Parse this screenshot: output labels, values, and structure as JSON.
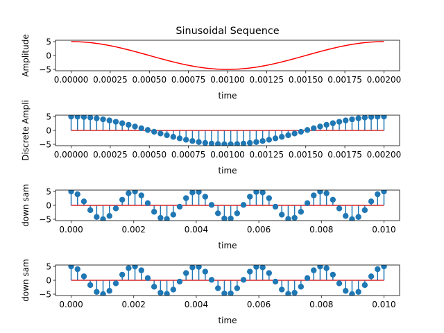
{
  "chart_data": [
    {
      "type": "line",
      "title": "Sinusoidal Sequence",
      "xlabel": "time",
      "ylabel": "Amplitude",
      "xlim": [
        -0.0001,
        0.0021
      ],
      "ylim": [
        -5.5,
        5.5
      ],
      "xticks": [
        0.0,
        0.00025,
        0.0005,
        0.00075,
        0.001,
        0.00125,
        0.0015,
        0.00175,
        0.002
      ],
      "xtick_labels": [
        "0.00000",
        "0.00025",
        "0.00050",
        "0.00075",
        "0.00100",
        "0.00125",
        "0.00150",
        "0.00175",
        "0.00200"
      ],
      "yticks": [
        -5,
        0,
        5
      ],
      "ytick_labels": [
        "−5",
        "0",
        "5"
      ],
      "line_color": "#ff0000",
      "function": {
        "amplitude": 5,
        "frequency_hz": 500,
        "x_start": 0,
        "x_end": 0.002,
        "samples": 200
      }
    },
    {
      "type": "stem",
      "title": "",
      "xlabel": "time",
      "ylabel": "Discrete Ampli",
      "xlim": [
        -0.0001,
        0.0021
      ],
      "ylim": [
        -5.5,
        5.5
      ],
      "xticks": [
        0.0,
        0.00025,
        0.0005,
        0.00075,
        0.001,
        0.00125,
        0.0015,
        0.00175,
        0.002
      ],
      "xtick_labels": [
        "0.00000",
        "0.00025",
        "0.00050",
        "0.00075",
        "0.00100",
        "0.00125",
        "0.00150",
        "0.00175",
        "0.00200"
      ],
      "yticks": [
        -5,
        0,
        5
      ],
      "ytick_labels": [
        "−5",
        "0",
        "5"
      ],
      "marker_color": "#1f77b4",
      "baseline_color": "#d62728",
      "function": {
        "amplitude": 5,
        "frequency_hz": 500,
        "x_start": 0,
        "x_end": 0.002,
        "samples": 50
      }
    },
    {
      "type": "stem",
      "title": "",
      "xlabel": "time",
      "ylabel": "down sam",
      "xlim": [
        -0.0005,
        0.0105
      ],
      "ylim": [
        -5.5,
        5.5
      ],
      "xticks": [
        0.0,
        0.002,
        0.004,
        0.006,
        0.008,
        0.01
      ],
      "xtick_labels": [
        "0.000",
        "0.002",
        "0.004",
        "0.006",
        "0.008",
        "0.010"
      ],
      "yticks": [
        -5,
        0,
        5
      ],
      "ytick_labels": [
        "−5",
        "0",
        "5"
      ],
      "marker_color": "#1f77b4",
      "baseline_color": "#d62728",
      "function": {
        "amplitude": 5,
        "frequency_hz": 500,
        "x_start": 0,
        "x_end": 0.01,
        "samples": 50
      }
    },
    {
      "type": "stem",
      "title": "",
      "xlabel": "time",
      "ylabel": "down sam",
      "xlim": [
        -0.0005,
        0.0105
      ],
      "ylim": [
        -5.5,
        5.5
      ],
      "xticks": [
        0.0,
        0.002,
        0.004,
        0.006,
        0.008,
        0.01
      ],
      "xtick_labels": [
        "0.000",
        "0.002",
        "0.004",
        "0.006",
        "0.008",
        "0.010"
      ],
      "yticks": [
        -5,
        0,
        5
      ],
      "ytick_labels": [
        "−5",
        "0",
        "5"
      ],
      "marker_color": "#1f77b4",
      "baseline_color": "#d62728",
      "function": {
        "amplitude": 5,
        "frequency_hz": 500,
        "x_start": 0,
        "x_end": 0.01,
        "samples": 50
      }
    }
  ]
}
